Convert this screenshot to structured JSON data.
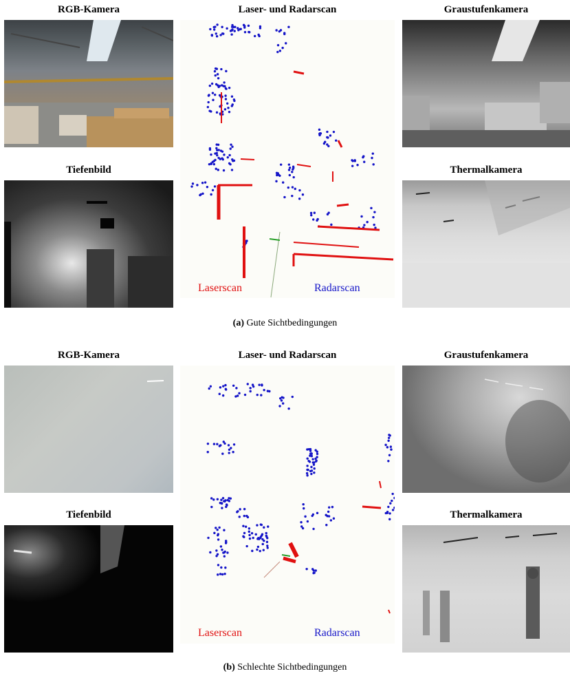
{
  "panel_a": {
    "rgb_label": "RGB-Kamera",
    "scan_label": "Laser- und Radarscan",
    "gray_label": "Graustufenkamera",
    "depth_label": "Tiefenbild",
    "thermal_label": "Thermalkamera",
    "laser_label": "Laserscan",
    "radar_label": "Radarscan",
    "caption_tag": "(a)",
    "caption_text": "Gute Sichtbedingungen"
  },
  "panel_b": {
    "rgb_label": "RGB-Kamera",
    "scan_label": "Laser- und Radarscan",
    "gray_label": "Graustufenkamera",
    "depth_label": "Tiefenbild",
    "thermal_label": "Thermalkamera",
    "laser_label": "Laserscan",
    "radar_label": "Radarscan",
    "caption_tag": "(b)",
    "caption_text": "Schlechte Sichtbedingungen"
  },
  "colors": {
    "laser": "#e01010",
    "radar": "#1515c8",
    "heading_green": "#2aa02a"
  }
}
